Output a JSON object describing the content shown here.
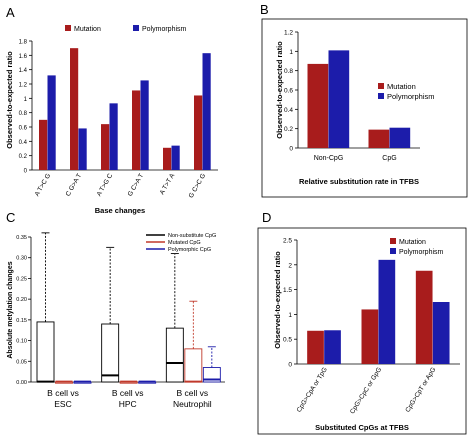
{
  "chart_data": [
    {
      "panel": "A",
      "type": "bar",
      "xlabel": "Base changes",
      "ylabel": "Observed-to-expected ratio",
      "ylim": [
        0,
        1.8
      ],
      "yticks": [
        "0",
        "0.2",
        "0.4",
        "0.6",
        "0.8",
        "1",
        "1.2",
        "1.4",
        "1.6",
        "1.8"
      ],
      "categories": [
        "A T>C G",
        "C G>A T",
        "A T>G C",
        "G C>A T",
        "A T>T A",
        "G C>C G"
      ],
      "series": [
        {
          "name": "Mutation",
          "color": "#a81c1c",
          "values": [
            0.7,
            1.7,
            0.64,
            1.11,
            0.31,
            1.04
          ]
        },
        {
          "name": "Polymorphism",
          "color": "#1c1caa",
          "values": [
            1.32,
            0.58,
            0.93,
            1.25,
            0.34,
            1.63
          ]
        }
      ],
      "legend": "top"
    },
    {
      "panel": "B",
      "type": "bar",
      "xlabel": "Relative substitution rate in TFBS",
      "ylabel": "Observed-to-expected ratio",
      "ylim": [
        0,
        1.2
      ],
      "yticks": [
        "0",
        "0.2",
        "0.4",
        "0.6",
        "0.8",
        "1",
        "1.2"
      ],
      "categories": [
        "Non-CpG",
        "CpG"
      ],
      "series": [
        {
          "name": "Mutation",
          "color": "#a81c1c",
          "values": [
            0.87,
            0.19
          ]
        },
        {
          "name": "Polymorphism",
          "color": "#1c1caa",
          "values": [
            1.01,
            0.21
          ]
        }
      ],
      "legend": "right"
    },
    {
      "panel": "C",
      "type": "boxplot",
      "ylabel": "Absolute metylation changes",
      "ylim": [
        0,
        0.35
      ],
      "yticks": [
        "0.00",
        "0.05",
        "0.10",
        "0.15",
        "0.20",
        "0.25",
        "0.30",
        "0.35"
      ],
      "categories": [
        "B cell vs ESC",
        "B cell vs HPC",
        "B cell vs Neutrophil"
      ],
      "category_lines": [
        [
          "B cell vs",
          "ESC"
        ],
        [
          "B cell vs",
          "HPC"
        ],
        [
          "B cell vs",
          "Neutrophil"
        ]
      ],
      "series": [
        {
          "name": "Non-substitute CpG",
          "color": "#000000"
        },
        {
          "name": "Mutated CpG",
          "color": "#c0392b"
        },
        {
          "name": "Polymorphic CpG",
          "color": "#1c1caa"
        }
      ],
      "boxes": [
        [
          {
            "min": 0,
            "q1": 0,
            "median": 0,
            "q3": 0.145,
            "max": 0.36
          },
          {
            "min": 0,
            "q1": 0,
            "median": 0,
            "q3": 0,
            "max": 0
          },
          {
            "min": 0,
            "q1": 0,
            "median": 0,
            "q3": 0,
            "max": 0
          }
        ],
        [
          {
            "min": 0,
            "q1": 0,
            "median": 0.015,
            "q3": 0.14,
            "max": 0.325
          },
          {
            "min": 0,
            "q1": 0,
            "median": 0,
            "q3": 0,
            "max": 0
          },
          {
            "min": 0,
            "q1": 0,
            "median": 0,
            "q3": 0,
            "max": 0
          }
        ],
        [
          {
            "min": 0,
            "q1": 0,
            "median": 0.045,
            "q3": 0.13,
            "max": 0.31
          },
          {
            "min": 0,
            "q1": 0,
            "median": 0,
            "q3": 0.08,
            "max": 0.195
          },
          {
            "min": 0,
            "q1": 0,
            "median": 0.005,
            "q3": 0.035,
            "max": 0.085
          }
        ]
      ],
      "legend": "top-right"
    },
    {
      "panel": "D",
      "type": "bar",
      "xlabel": "Substituted CpGs at TFBS",
      "ylabel": "Observed-to-expected ratio",
      "ylim": [
        0,
        2.5
      ],
      "yticks": [
        "0",
        "0.5",
        "1",
        "1.5",
        "2",
        "2.5"
      ],
      "categories": [
        "CpG>CpA or TpG",
        "CpG>CpC or GpG",
        "CpG>CpT or ApG"
      ],
      "series": [
        {
          "name": "Mutation",
          "color": "#a81c1c",
          "values": [
            0.67,
            1.1,
            1.88
          ]
        },
        {
          "name": "Polymorphism",
          "color": "#1c1caa",
          "values": [
            0.68,
            2.1,
            1.25
          ]
        }
      ],
      "legend": "top-right"
    }
  ]
}
